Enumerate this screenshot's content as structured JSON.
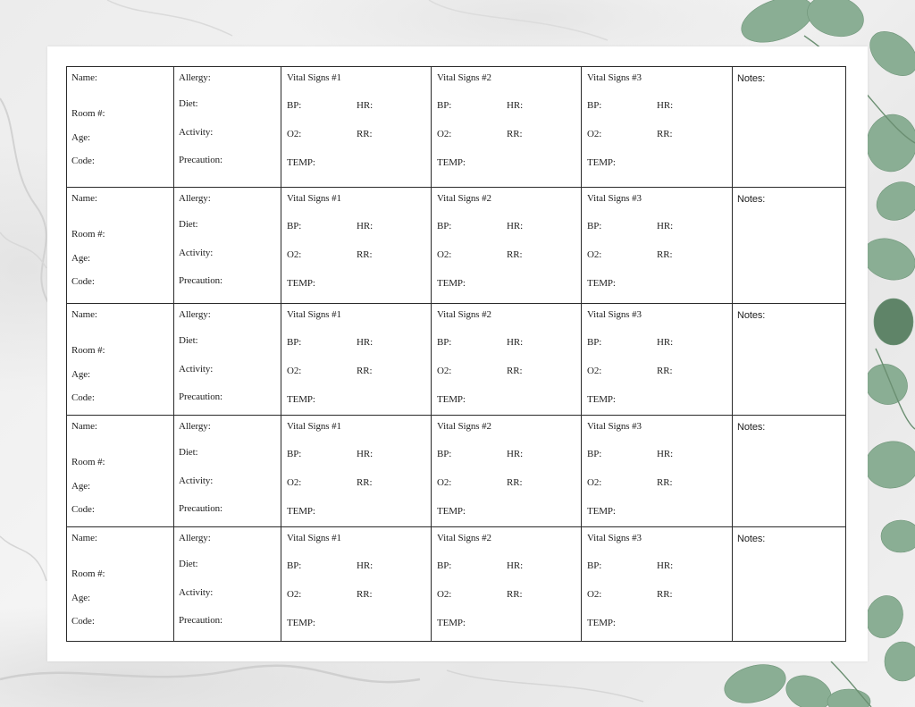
{
  "labels": {
    "name": "Name:",
    "room": "Room #:",
    "age": "Age:",
    "code": "Code:",
    "allergy": "Allergy:",
    "diet": "Diet:",
    "activity": "Activity:",
    "precaution": "Precaution:",
    "vitals_1": "Vital Signs #1",
    "vitals_2": "Vital Signs #2",
    "vitals_3": "Vital Signs #3",
    "bp": "BP:",
    "hr": "HR:",
    "o2": "O2:",
    "rr": "RR:",
    "temp": "TEMP:",
    "notes": "Notes:"
  },
  "patient_row_count": 5,
  "colors": {
    "border": "#2a2a2a",
    "paper": "#ffffff",
    "leaf": "#7fa489"
  }
}
